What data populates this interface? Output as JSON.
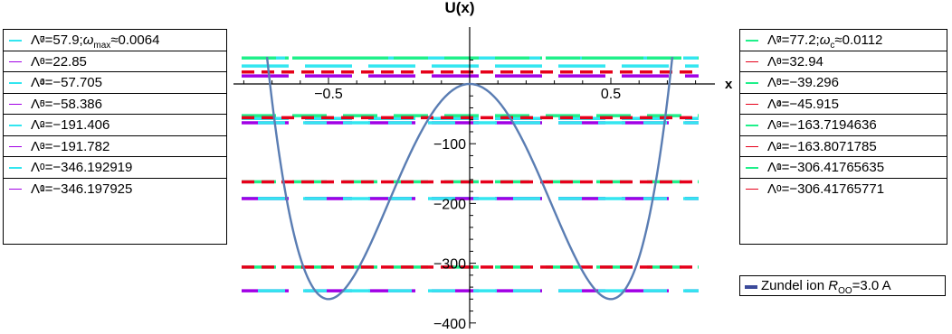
{
  "chart_data": {
    "type": "line",
    "title": "U(x)",
    "xlabel": "x",
    "ylabel": "",
    "xlim": [
      -0.85,
      0.85
    ],
    "ylim": [
      -400,
      55
    ],
    "x_ticks": [
      "-0.5",
      "0.5"
    ],
    "x_tick_values": [
      -0.5,
      0.5
    ],
    "y_ticks": [
      "-100",
      "-200",
      "-300",
      "-400"
    ],
    "y_tick_values": [
      -100,
      -200,
      -300,
      -400
    ],
    "curve": {
      "name": "Zundel ion R_OO=3.0 A",
      "color": "#5a7db3",
      "x": [
        -0.76,
        -0.7,
        -0.6,
        -0.5,
        -0.4,
        -0.3,
        -0.2,
        -0.1,
        0,
        0.1,
        0.2,
        0.3,
        0.4,
        0.5,
        0.6,
        0.7,
        0.76
      ],
      "y": [
        55,
        -125,
        -307,
        -360,
        -300,
        -192,
        -95,
        -25,
        0,
        -25,
        -95,
        -192,
        -300,
        -360,
        -307,
        -125,
        55
      ]
    },
    "levels_left": [
      {
        "value": 43.5,
        "colors": [
          "#1ff08a",
          "#33e6f0"
        ]
      },
      {
        "value": 30,
        "colors": [
          "#33e6f0"
        ]
      },
      {
        "value": 13.5,
        "colors": [
          "#a100e5"
        ]
      },
      {
        "value": -57.705,
        "colors": [
          "#33e6f0"
        ]
      },
      {
        "value": -65,
        "colors": [
          "#a100e5",
          "#33e6f0"
        ]
      },
      {
        "value": -191.406,
        "colors": [
          "#33e6f0"
        ]
      },
      {
        "value": -191.782,
        "colors": [
          "#a100e5",
          "#33e6f0"
        ]
      },
      {
        "value": -346.193,
        "colors": [
          "#a100e5",
          "#33e6f0"
        ]
      }
    ],
    "levels_right": [
      {
        "value": 43.5,
        "color": "#1ff08a"
      },
      {
        "value": 20,
        "color": "#e6001a"
      },
      {
        "value": -53,
        "color": "#1ff08a"
      },
      {
        "value": -56.5,
        "color": "#e6001a"
      },
      {
        "value": -163.72,
        "color": "#1ff08a"
      },
      {
        "value": -163.81,
        "color": "#e6001a"
      },
      {
        "value": -306.4177,
        "color": "#1ff08a"
      },
      {
        "value": -306.4177,
        "color": "#e6001a"
      }
    ]
  },
  "legend_left": [
    {
      "sym": "Λ",
      "sub": "7",
      "sup": "0",
      "text": "=57.9;",
      "extra_sym": "ω",
      "extra_sub": "max",
      "extra_text": "≈0.0064",
      "color": "#33e6f0"
    },
    {
      "sym": "Λ",
      "sub": "6",
      "sup": "0",
      "text": "=22.85",
      "color": "#a100e5"
    },
    {
      "sym": "Λ",
      "sub": "4",
      "sup": "0",
      "text": "=−57.705",
      "color": "#33e6f0"
    },
    {
      "sym": "Λ",
      "sub": "5",
      "sup": "0",
      "text": "=−58.386",
      "color": "#a100e5"
    },
    {
      "sym": "Λ",
      "sub": "2",
      "sup": "0",
      "text": "=−191.406",
      "color": "#33e6f0"
    },
    {
      "sym": "Λ",
      "sub": "3",
      "sup": "0",
      "text": "=−191.782",
      "color": "#a100e5"
    },
    {
      "sym": "Λ",
      "sub": "0",
      "sup": "0",
      "text": "=−346.192919",
      "color": "#33e6f0"
    },
    {
      "sym": "Λ",
      "sub": "1",
      "sup": "0",
      "text": "=−346.197925",
      "color": "#a100e5"
    }
  ],
  "legend_right": [
    {
      "sym": "Λ",
      "sub": "7",
      "sup": "0",
      "text": "=77.2;",
      "extra_sym": "ω",
      "extra_sub": "c",
      "extra_text": "≈0.0112",
      "color": "#1ff08a"
    },
    {
      "sym": "Λ",
      "sub": "6",
      "sup": "0",
      "text": "=32.94",
      "color": "#e6001a"
    },
    {
      "sym": "Λ",
      "sub": "5",
      "sup": "0",
      "text": "=−39.296",
      "color": "#1ff08a"
    },
    {
      "sym": "Λ",
      "sub": "4",
      "sup": "0",
      "text": "=−45.915",
      "color": "#e6001a"
    },
    {
      "sym": "Λ",
      "sub": "3",
      "sup": "0",
      "text": "=−163.7194636",
      "color": "#1ff08a"
    },
    {
      "sym": "Λ",
      "sub": "2",
      "sup": "0",
      "text": "=−163.8071785",
      "color": "#e6001a"
    },
    {
      "sym": "Λ",
      "sub": "1",
      "sup": "0",
      "text": "=−306.41765635",
      "color": "#1ff08a"
    },
    {
      "sym": "Λ",
      "sub": "0",
      "sup": "0",
      "text": "=−306.41765771",
      "color": "#e6001a"
    }
  ],
  "zundel_legend": {
    "text": "Zundel ion ",
    "r_sym": "R",
    "r_sub": "OO",
    "r_text": "=3.0 A",
    "color": "#3b4a9a"
  }
}
